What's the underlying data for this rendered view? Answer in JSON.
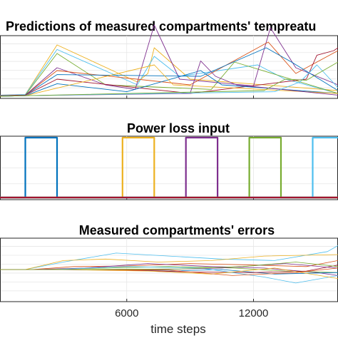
{
  "xlabel": "time steps",
  "x_ticks": [
    6000,
    12000
  ],
  "xlim": [
    0,
    16000
  ],
  "colors": {
    "grid": "#e6e6e6",
    "axis": "#262626",
    "palette": [
      "#0072bd",
      "#d95319",
      "#edb120",
      "#7e2f8e",
      "#77ac30",
      "#4dbeee",
      "#a2142f"
    ]
  },
  "chart_data": [
    {
      "type": "line",
      "title": "Predictions of measured compartments' tempreatu",
      "xlabel": "",
      "ylabel": "",
      "ylim": [
        0,
        1
      ],
      "grid": true,
      "series": [
        {
          "color": "#edb120",
          "points": [
            [
              0,
              0.02
            ],
            [
              1200,
              0.03
            ],
            [
              2700,
              0.9
            ],
            [
              6500,
              0.25
            ],
            [
              7000,
              0.4
            ],
            [
              7300,
              0.85
            ],
            [
              9000,
              0.3
            ],
            [
              16000,
              0.1
            ]
          ]
        },
        {
          "color": "#4dbeee",
          "points": [
            [
              0,
              0.02
            ],
            [
              1200,
              0.03
            ],
            [
              2700,
              0.82
            ],
            [
              6500,
              0.2
            ],
            [
              7300,
              0.7
            ],
            [
              8500,
              0.35
            ],
            [
              12200,
              0.55
            ],
            [
              13500,
              0.3
            ],
            [
              16000,
              0.05
            ]
          ]
        },
        {
          "color": "#77ac30",
          "points": [
            [
              0,
              0.01
            ],
            [
              1200,
              0.02
            ],
            [
              2700,
              0.75
            ],
            [
              5000,
              0.2
            ],
            [
              10000,
              0.12
            ],
            [
              11100,
              0.6
            ],
            [
              16000,
              0.05
            ]
          ]
        },
        {
          "color": "#7e2f8e",
          "points": [
            [
              0,
              0.01
            ],
            [
              1200,
              0.02
            ],
            [
              2700,
              0.5
            ],
            [
              5000,
              0.2
            ],
            [
              6400,
              0.12
            ],
            [
              7300,
              1.25
            ],
            [
              8500,
              0.3
            ],
            [
              12000,
              0.18
            ],
            [
              12800,
              1.2
            ],
            [
              14000,
              0.5
            ],
            [
              16000,
              0.2
            ]
          ]
        },
        {
          "color": "#d95319",
          "points": [
            [
              0,
              0.01
            ],
            [
              1200,
              0.02
            ],
            [
              2700,
              0.45
            ],
            [
              9000,
              0.2
            ],
            [
              12700,
              0.95
            ],
            [
              14000,
              0.4
            ],
            [
              16000,
              0.8
            ]
          ]
        },
        {
          "color": "#0072bd",
          "points": [
            [
              0,
              0.01
            ],
            [
              1200,
              0.02
            ],
            [
              2700,
              0.38
            ],
            [
              9500,
              0.35
            ],
            [
              12600,
              0.85
            ],
            [
              13800,
              0.6
            ],
            [
              16000,
              0.1
            ]
          ]
        },
        {
          "color": "#a2142f",
          "points": [
            [
              0,
              0.01
            ],
            [
              1200,
              0.02
            ],
            [
              2700,
              0.3
            ],
            [
              9000,
              0.05
            ],
            [
              14500,
              0.3
            ],
            [
              15000,
              0.72
            ],
            [
              15800,
              0.8
            ],
            [
              16000,
              0.85
            ]
          ]
        },
        {
          "color": "#0072bd",
          "points": [
            [
              0,
              0.0
            ],
            [
              1200,
              0.01
            ],
            [
              2700,
              0.22
            ],
            [
              6000,
              0.08
            ],
            [
              9500,
              0.45
            ],
            [
              10500,
              0.2
            ],
            [
              16000,
              0.05
            ]
          ]
        },
        {
          "color": "#edb120",
          "points": [
            [
              0,
              0.0
            ],
            [
              1200,
              0.01
            ],
            [
              7300,
              0.55
            ],
            [
              8200,
              0.2
            ],
            [
              16000,
              0.05
            ]
          ]
        },
        {
          "color": "#7e2f8e",
          "points": [
            [
              0,
              0.0
            ],
            [
              1200,
              0.01
            ],
            [
              9000,
              0.05
            ],
            [
              9500,
              0.62
            ],
            [
              10200,
              0.35
            ],
            [
              11200,
              0.2
            ],
            [
              16000,
              0.02
            ]
          ]
        },
        {
          "color": "#4dbeee",
          "points": [
            [
              0,
              0.0
            ],
            [
              1200,
              0.01
            ],
            [
              13000,
              0.08
            ],
            [
              14200,
              0.25
            ],
            [
              15000,
              0.55
            ],
            [
              16000,
              0.15
            ]
          ]
        },
        {
          "color": "#77ac30",
          "points": [
            [
              0,
              0.0
            ],
            [
              1200,
              0.01
            ],
            [
              12500,
              0.1
            ],
            [
              13500,
              0.3
            ],
            [
              14500,
              0.28
            ],
            [
              16000,
              0.6
            ]
          ]
        }
      ]
    },
    {
      "type": "line",
      "title": "Power loss input",
      "xlabel": "",
      "ylabel": "",
      "ylim": [
        0,
        1
      ],
      "grid": true,
      "series": [
        {
          "color": "#0072bd",
          "points": [
            [
              0,
              0
            ],
            [
              1200,
              0
            ],
            [
              1200,
              1
            ],
            [
              2700,
              1
            ],
            [
              2700,
              0
            ],
            [
              16000,
              0
            ]
          ]
        },
        {
          "color": "#edb120",
          "points": [
            [
              0,
              0
            ],
            [
              5800,
              0
            ],
            [
              5800,
              1
            ],
            [
              7300,
              1
            ],
            [
              7300,
              0
            ],
            [
              16000,
              0
            ]
          ]
        },
        {
          "color": "#7e2f8e",
          "points": [
            [
              0,
              0
            ],
            [
              8800,
              0
            ],
            [
              8800,
              1
            ],
            [
              10300,
              1
            ],
            [
              10300,
              0
            ],
            [
              16000,
              0
            ]
          ]
        },
        {
          "color": "#77ac30",
          "points": [
            [
              0,
              0
            ],
            [
              11800,
              0
            ],
            [
              11800,
              1
            ],
            [
              13300,
              1
            ],
            [
              13300,
              0
            ],
            [
              16000,
              0
            ]
          ]
        },
        {
          "color": "#4dbeee",
          "points": [
            [
              0,
              0
            ],
            [
              14800,
              0
            ],
            [
              14800,
              1
            ],
            [
              16000,
              1
            ]
          ]
        },
        {
          "color": "#a2142f",
          "points": [
            [
              0,
              0
            ],
            [
              16000,
              0
            ]
          ]
        }
      ]
    },
    {
      "type": "line",
      "title": "Measured compartments' errors",
      "xlabel": "time steps",
      "ylabel": "",
      "ylim": [
        -1,
        1
      ],
      "grid": true,
      "series": [
        {
          "color": "#4dbeee",
          "points": [
            [
              0,
              0
            ],
            [
              1200,
              0
            ],
            [
              3000,
              0.25
            ],
            [
              5500,
              0.55
            ],
            [
              8000,
              0.45
            ],
            [
              10500,
              0.35
            ],
            [
              13000,
              0.3
            ],
            [
              15500,
              0.6
            ],
            [
              16000,
              0.8
            ]
          ]
        },
        {
          "color": "#edb120",
          "points": [
            [
              0,
              0
            ],
            [
              1200,
              0
            ],
            [
              3000,
              0.3
            ],
            [
              5000,
              0.35
            ],
            [
              7500,
              0.25
            ],
            [
              10000,
              0.3
            ],
            [
              12500,
              0.45
            ],
            [
              16000,
              0.5
            ]
          ]
        },
        {
          "color": "#d95319",
          "points": [
            [
              0,
              0
            ],
            [
              1500,
              0
            ],
            [
              3500,
              0.1
            ],
            [
              6000,
              0.12
            ],
            [
              9000,
              0.2
            ],
            [
              12000,
              0.15
            ],
            [
              14500,
              0.1
            ],
            [
              16000,
              0.3
            ]
          ]
        },
        {
          "color": "#7e2f8e",
          "points": [
            [
              0,
              0
            ],
            [
              1500,
              0
            ],
            [
              4000,
              0.05
            ],
            [
              7000,
              0.2
            ],
            [
              10000,
              0.1
            ],
            [
              12500,
              0.05
            ],
            [
              15000,
              -0.1
            ],
            [
              16000,
              -0.2
            ]
          ]
        },
        {
          "color": "#77ac30",
          "points": [
            [
              0,
              0
            ],
            [
              2000,
              0
            ],
            [
              5000,
              0.05
            ],
            [
              8000,
              0.1
            ],
            [
              11000,
              0.05
            ],
            [
              13500,
              -0.05
            ],
            [
              16000,
              -0.1
            ]
          ]
        },
        {
          "color": "#0072bd",
          "points": [
            [
              0,
              0
            ],
            [
              2000,
              0
            ],
            [
              5000,
              0.0
            ],
            [
              8000,
              -0.05
            ],
            [
              10500,
              0.0
            ],
            [
              13000,
              -0.15
            ],
            [
              16000,
              -0.1
            ]
          ]
        },
        {
          "color": "#a2142f",
          "points": [
            [
              0,
              0
            ],
            [
              2500,
              0
            ],
            [
              6000,
              -0.02
            ],
            [
              9000,
              -0.08
            ],
            [
              12000,
              -0.1
            ],
            [
              14500,
              -0.05
            ],
            [
              16000,
              0.15
            ]
          ]
        },
        {
          "color": "#4dbeee",
          "points": [
            [
              0,
              0
            ],
            [
              2500,
              0
            ],
            [
              6000,
              0.1
            ],
            [
              9500,
              0.05
            ],
            [
              12500,
              -0.25
            ],
            [
              14000,
              -0.45
            ],
            [
              16000,
              -0.2
            ]
          ]
        },
        {
          "color": "#edb120",
          "points": [
            [
              0,
              0
            ],
            [
              3000,
              0
            ],
            [
              7000,
              -0.05
            ],
            [
              10000,
              -0.15
            ],
            [
              13000,
              0.05
            ],
            [
              16000,
              -0.3
            ]
          ]
        },
        {
          "color": "#7e2f8e",
          "points": [
            [
              0,
              0
            ],
            [
              3000,
              0
            ],
            [
              7500,
              0.0
            ],
            [
              10500,
              0.05
            ],
            [
              13500,
              0.2
            ],
            [
              16000,
              0.05
            ]
          ]
        },
        {
          "color": "#d95319",
          "points": [
            [
              0,
              0
            ],
            [
              3500,
              0
            ],
            [
              8000,
              -0.02
            ],
            [
              11000,
              -0.2
            ],
            [
              14000,
              -0.1
            ],
            [
              16000,
              0.05
            ]
          ]
        },
        {
          "color": "#77ac30",
          "points": [
            [
              0,
              0
            ],
            [
              4000,
              0
            ],
            [
              8500,
              0.02
            ],
            [
              11500,
              0.1
            ],
            [
              14000,
              0.25
            ],
            [
              16000,
              0.1
            ]
          ]
        }
      ]
    }
  ]
}
